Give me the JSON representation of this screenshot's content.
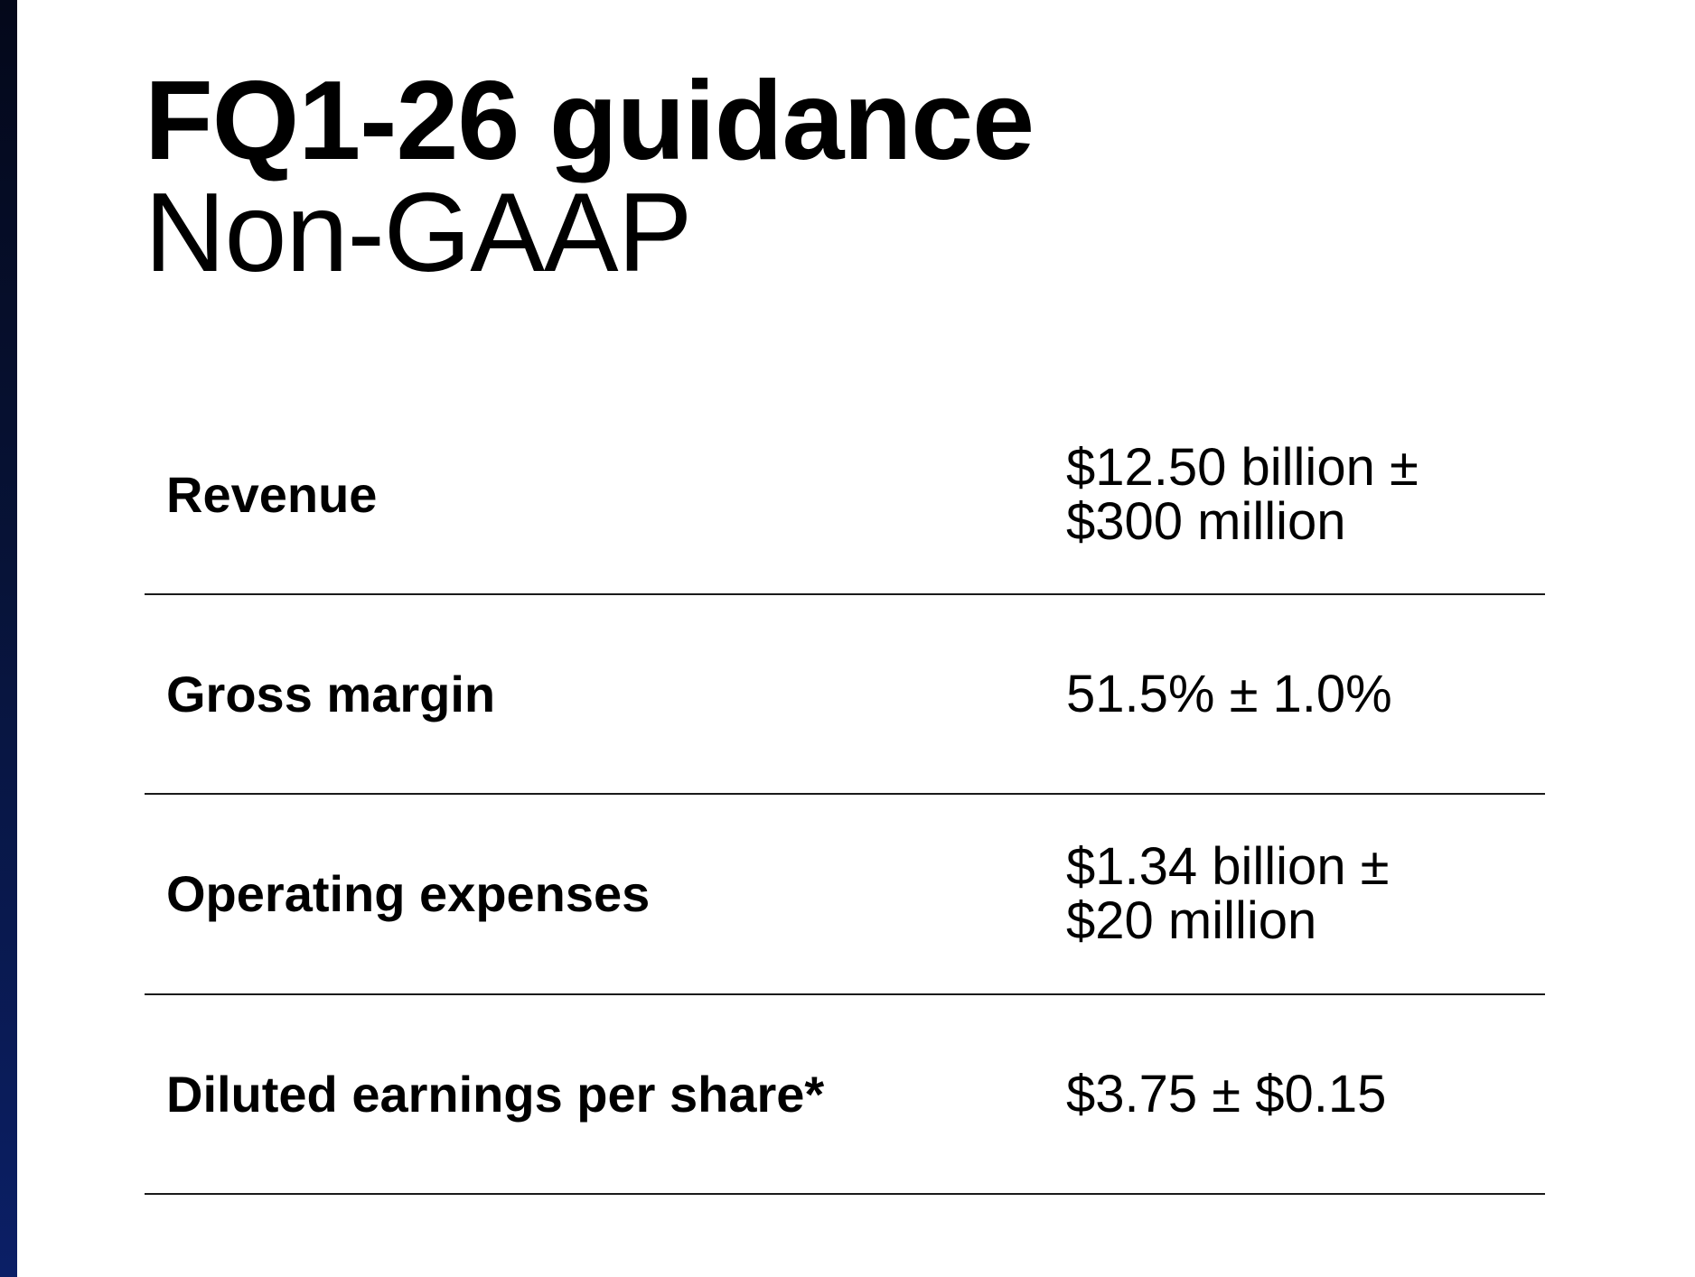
{
  "slide": {
    "title": "FQ1-26 guidance",
    "subtitle": "Non-GAAP"
  },
  "guidance_table": {
    "rows": [
      {
        "label": "Revenue",
        "value": "$12.50 billion ± $300 million"
      },
      {
        "label": "Gross margin",
        "value": "51.5% ± 1.0%"
      },
      {
        "label": "Operating expenses",
        "value": "$1.34 billion ± $20 million"
      },
      {
        "label": "Diluted earnings per share*",
        "value": "$3.75 ± $0.15"
      }
    ]
  },
  "colors": {
    "edge_bar_top": "#04081a",
    "edge_bar_bottom": "#0b1f66",
    "text": "#000000",
    "divider": "#1a1a1a"
  }
}
